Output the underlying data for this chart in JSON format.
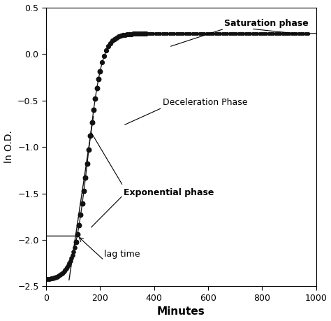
{
  "title": "",
  "xlabel": "Minutes",
  "ylabel": "ln O.D.",
  "xlim": [
    0,
    1000
  ],
  "ylim": [
    -2.5,
    0.5
  ],
  "xticks": [
    0,
    200,
    400,
    600,
    800,
    1000
  ],
  "yticks": [
    -2.5,
    -2.0,
    -1.5,
    -1.0,
    -0.5,
    0.0,
    0.5
  ],
  "y_min": -2.43,
  "y_max": 0.22,
  "k": 0.038,
  "t0": 155,
  "lag_x": 115,
  "background": "#ffffff",
  "dot_color": "#111111",
  "line_color": "#111111"
}
